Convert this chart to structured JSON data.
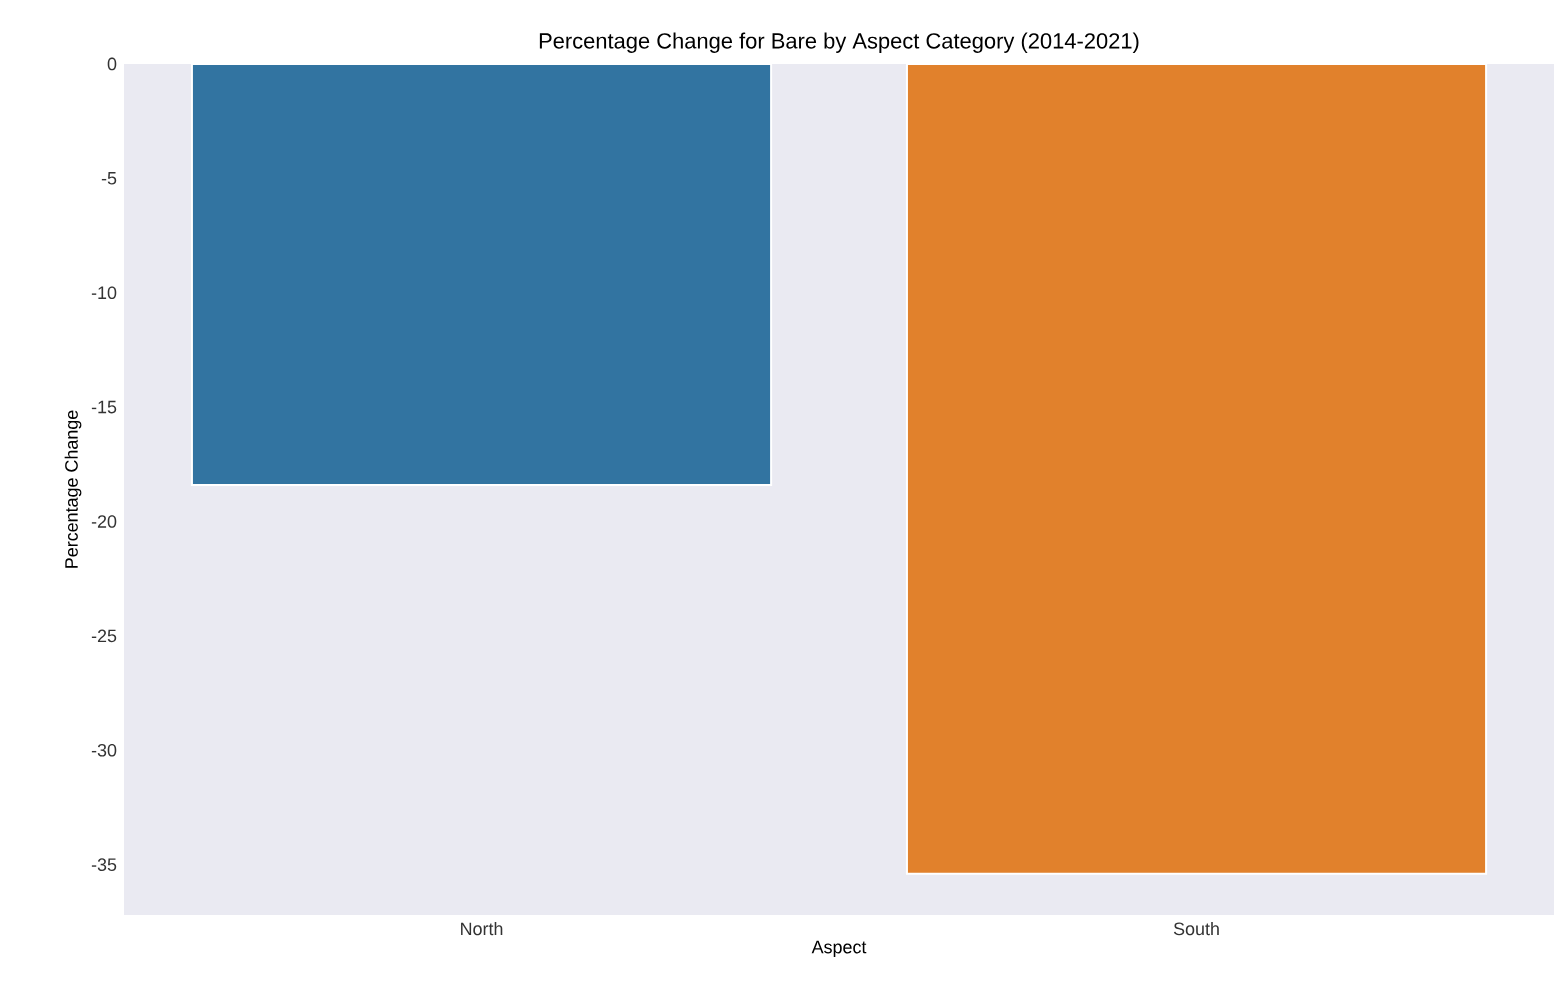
{
  "chart_data": {
    "type": "bar",
    "title": "Percentage Change for Bare by Aspect Category (2014-2021)",
    "xlabel": "Aspect",
    "ylabel": "Percentage Change",
    "categories": [
      "North",
      "South"
    ],
    "values": [
      -18.4,
      -35.4
    ],
    "colors": [
      "#3274a1",
      "#e1812c"
    ],
    "ylim": [
      -37.2,
      0
    ],
    "yticks": [
      0,
      -5,
      -10,
      -15,
      -20,
      -25,
      -30,
      -35
    ],
    "grid": false
  }
}
